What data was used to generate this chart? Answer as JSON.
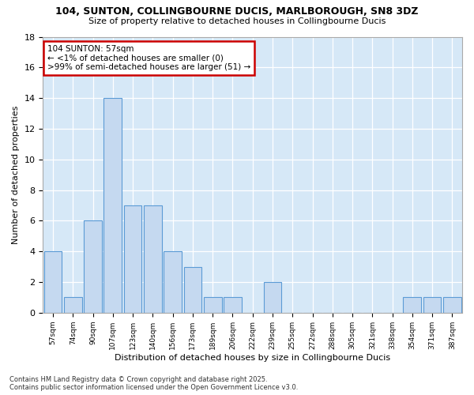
{
  "title1": "104, SUNTON, COLLINGBOURNE DUCIS, MARLBOROUGH, SN8 3DZ",
  "title2": "Size of property relative to detached houses in Collingbourne Ducis",
  "xlabel": "Distribution of detached houses by size in Collingbourne Ducis",
  "ylabel": "Number of detached properties",
  "footer1": "Contains HM Land Registry data © Crown copyright and database right 2025.",
  "footer2": "Contains public sector information licensed under the Open Government Licence v3.0.",
  "bins": [
    "57sqm",
    "74sqm",
    "90sqm",
    "107sqm",
    "123sqm",
    "140sqm",
    "156sqm",
    "173sqm",
    "189sqm",
    "206sqm",
    "222sqm",
    "239sqm",
    "255sqm",
    "272sqm",
    "288sqm",
    "305sqm",
    "321sqm",
    "338sqm",
    "354sqm",
    "371sqm",
    "387sqm"
  ],
  "values": [
    4,
    1,
    6,
    14,
    7,
    7,
    4,
    3,
    1,
    1,
    0,
    2,
    0,
    0,
    0,
    0,
    0,
    0,
    1,
    1,
    1
  ],
  "bar_color": "#c5d9f0",
  "bar_edge_color": "#5b9bd5",
  "annotation_box_color": "#ffffff",
  "annotation_border_color": "#cc0000",
  "annotation_title": "104 SUNTON: 57sqm",
  "annotation_line1": "← <1% of detached houses are smaller (0)",
  "annotation_line2": ">99% of semi-detached houses are larger (51) →",
  "fig_bg_color": "#ffffff",
  "plot_bg_color": "#d6e8f7",
  "ylim": [
    0,
    18
  ],
  "yticks": [
    0,
    2,
    4,
    6,
    8,
    10,
    12,
    14,
    16,
    18
  ]
}
